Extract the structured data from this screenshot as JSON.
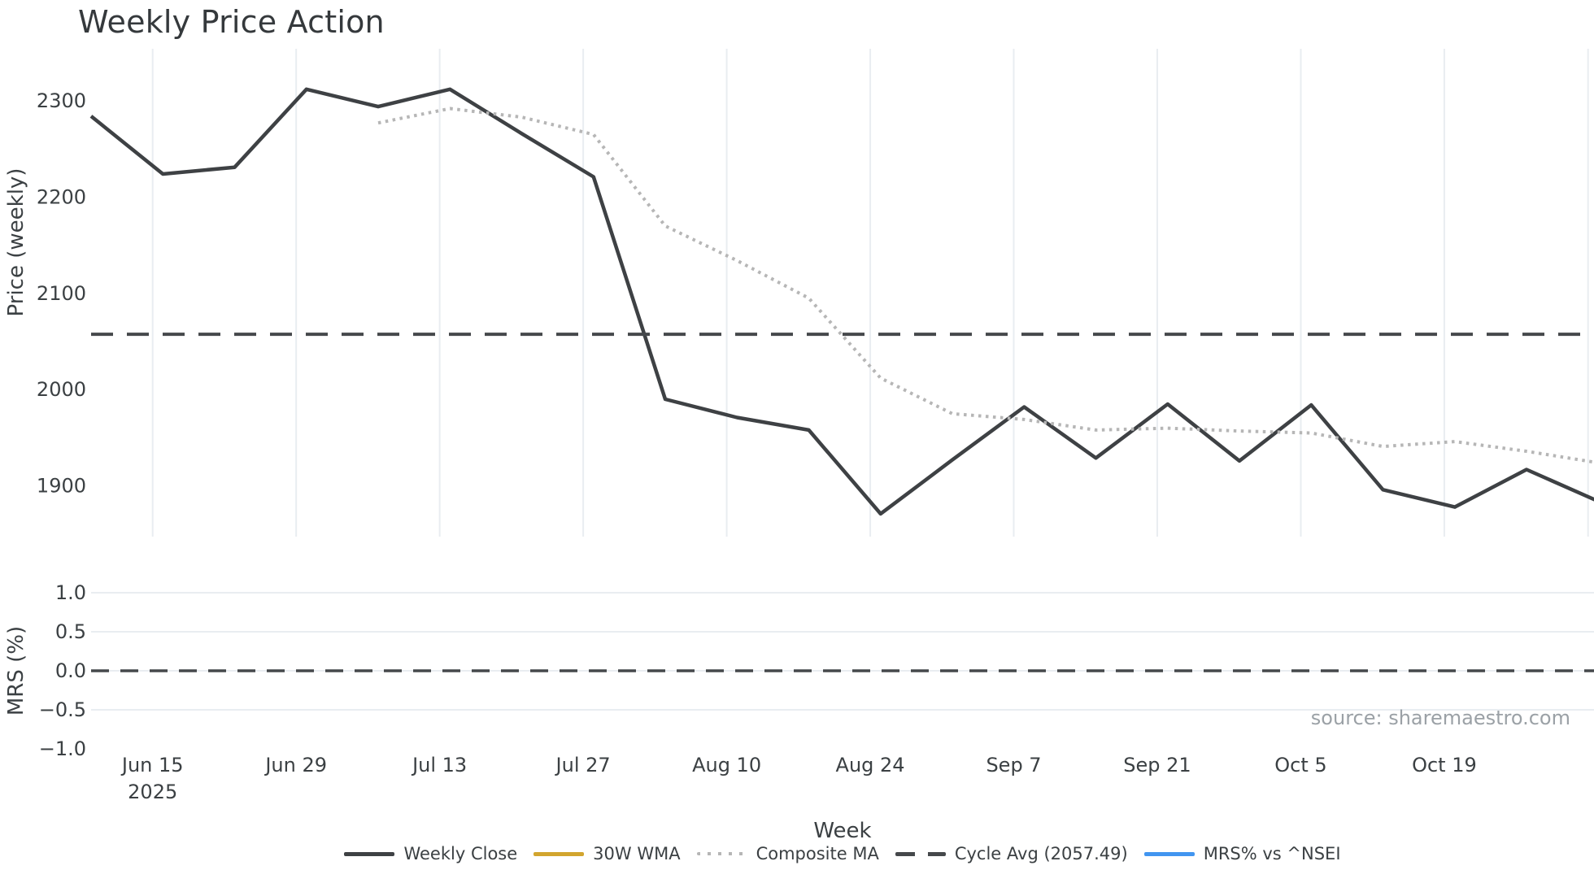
{
  "labels": {
    "title": "Weekly Price Action",
    "xlabel": "Week",
    "price_ylabel": "Price (weekly)",
    "mrs_ylabel": "MRS (%)",
    "source": "source: sharemaestro.com"
  },
  "chart_data": {
    "type": "line",
    "title": "Weekly Price Action",
    "xlabel": "Week",
    "panels": [
      {
        "name": "price",
        "ylabel": "Price (weekly)",
        "yticks": [
          2300,
          2200,
          2100,
          2000,
          1900
        ],
        "ylim": [
          1850,
          2330
        ],
        "grid": "vertical-only"
      },
      {
        "name": "mrs",
        "ylabel": "MRS (%)",
        "ytick_labels": [
          "1.0",
          "0.5",
          "0.0",
          "−0.5",
          "−1.0"
        ],
        "ytick_values": [
          1.0,
          0.5,
          0.0,
          -0.5,
          -1.0
        ],
        "ylim": [
          -1.1,
          1.1
        ],
        "zero_line_dashed": true,
        "grid": "horizontal-only"
      }
    ],
    "x": [
      "Jun 9",
      "Jun 16",
      "Jun 23",
      "Jun 30",
      "Jul 7",
      "Jul 14",
      "Jul 21",
      "Jul 28",
      "Aug 4",
      "Aug 11",
      "Aug 18",
      "Aug 25",
      "Sep 1",
      "Sep 8",
      "Sep 15",
      "Sep 22",
      "Sep 29",
      "Oct 6",
      "Oct 13",
      "Oct 20",
      "Oct 27",
      "Nov 3"
    ],
    "xtick_labels": [
      {
        "label": "Jun 15",
        "year": "2025"
      },
      {
        "label": "Jun 29"
      },
      {
        "label": "Jul 13"
      },
      {
        "label": "Jul 27"
      },
      {
        "label": "Aug 10"
      },
      {
        "label": "Aug 24"
      },
      {
        "label": "Sep 7"
      },
      {
        "label": "Sep 21"
      },
      {
        "label": "Oct 5"
      },
      {
        "label": "Oct 19"
      }
    ],
    "series": [
      {
        "name": "Weekly Close",
        "panel": "price",
        "style": "solid",
        "color": "#3e4144",
        "values": [
          2284,
          2224,
          2231,
          2312,
          2294,
          2312,
          2266,
          2221,
          1990,
          1971,
          1958,
          1871,
          1927,
          1982,
          1929,
          1985,
          1926,
          1984,
          1896,
          1878,
          1917,
          1884
        ]
      },
      {
        "name": "30W WMA",
        "panel": "price",
        "style": "solid",
        "color": "#d2a52e",
        "values": []
      },
      {
        "name": "Composite MA",
        "panel": "price",
        "style": "dotted",
        "color": "#b6b6b6",
        "values": [
          null,
          null,
          null,
          null,
          2277,
          2292,
          2283,
          2265,
          2170,
          2134,
          2095,
          2012,
          1975,
          1969,
          1958,
          1960,
          1957,
          1955,
          1941,
          1946,
          1936,
          1924
        ]
      },
      {
        "name": "Cycle Avg (2057.49)",
        "panel": "price",
        "style": "dashed",
        "color": "#45484b",
        "type": "hline",
        "value": 2057.49
      },
      {
        "name": "MRS% vs ^NSEI",
        "panel": "mrs",
        "style": "solid",
        "color": "#4195f0",
        "values": []
      }
    ],
    "legend_position": "bottom-center"
  }
}
